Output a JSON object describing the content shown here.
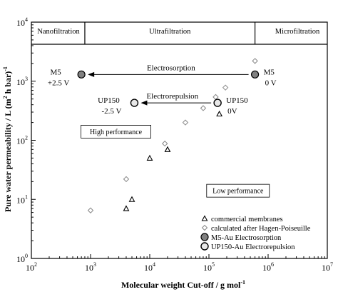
{
  "chart_data": {
    "type": "scatter",
    "x_scale": "log",
    "y_scale": "log",
    "xlim": [
      100,
      10000000
    ],
    "ylim": [
      1,
      10000
    ],
    "xlabel": "Molecular weight Cut-off / g mol",
    "xlabel_sup": "-1",
    "ylabel": "Pure water permeability / L (m",
    "ylabel_sup1": "2",
    "ylabel_mid": " h bar)",
    "ylabel_sup2": "-1",
    "x_ticks": [
      {
        "value": 100,
        "base": "10",
        "exp": "2"
      },
      {
        "value": 1000,
        "base": "10",
        "exp": "3"
      },
      {
        "value": 10000,
        "base": "10",
        "exp": "4"
      },
      {
        "value": 100000,
        "base": "10",
        "exp": "5"
      },
      {
        "value": 1000000,
        "base": "10",
        "exp": "6"
      },
      {
        "value": 10000000,
        "base": "10",
        "exp": "7"
      }
    ],
    "y_ticks": [
      {
        "value": 1,
        "base": "10",
        "exp": "0"
      },
      {
        "value": 10,
        "base": "10",
        "exp": "1"
      },
      {
        "value": 100,
        "base": "10",
        "exp": "2"
      },
      {
        "value": 1000,
        "base": "10",
        "exp": "3"
      },
      {
        "value": 10000,
        "base": "10",
        "exp": "4"
      }
    ],
    "regions": [
      {
        "label": "Nanofiltration",
        "from": 100,
        "to": 800
      },
      {
        "label": "Ultrafiltration",
        "from": 800,
        "to": 600000
      },
      {
        "label": "Microfiltration",
        "from": 600000,
        "to": 10000000
      }
    ],
    "region_boundaries": [
      800,
      600000
    ],
    "series": [
      {
        "name": "commercial membranes",
        "marker": "triangle",
        "points": [
          {
            "x": 4000,
            "y": 7
          },
          {
            "x": 5000,
            "y": 10
          },
          {
            "x": 10000,
            "y": 50
          },
          {
            "x": 20000,
            "y": 70
          },
          {
            "x": 150000,
            "y": 280
          }
        ]
      },
      {
        "name": "calculated after Hagen-Poiseuille",
        "marker": "diamond",
        "points": [
          {
            "x": 1000,
            "y": 6.5
          },
          {
            "x": 4000,
            "y": 22
          },
          {
            "x": 18000,
            "y": 88
          },
          {
            "x": 40000,
            "y": 200
          },
          {
            "x": 80000,
            "y": 350
          },
          {
            "x": 130000,
            "y": 540
          },
          {
            "x": 190000,
            "y": 780
          },
          {
            "x": 600000,
            "y": 2200
          }
        ]
      },
      {
        "name": "M5-Au Electrosorption",
        "marker": "circle-filled",
        "points": [
          {
            "x": 700,
            "y": 1300
          },
          {
            "x": 600000,
            "y": 1300
          }
        ]
      },
      {
        "name": "UP150-Au Electrorepulsion",
        "marker": "circle-open",
        "points": [
          {
            "x": 5500,
            "y": 430
          },
          {
            "x": 140000,
            "y": 430
          }
        ]
      }
    ],
    "arrows": [
      {
        "label": "Electrosorption",
        "from": {
          "x": 600000,
          "y": 1300
        },
        "to": {
          "x": 700,
          "y": 1300
        }
      },
      {
        "label": "Electrorepulsion",
        "from": {
          "x": 140000,
          "y": 430
        },
        "to": {
          "x": 5500,
          "y": 430
        }
      }
    ],
    "point_labels": [
      {
        "lines": [
          "M5",
          "+2.5 V"
        ],
        "x": 700,
        "y": 1300,
        "side": "left"
      },
      {
        "lines": [
          "M5",
          "0 V"
        ],
        "x": 600000,
        "y": 1300,
        "side": "right"
      },
      {
        "lines": [
          "UP150",
          "-2.5 V"
        ],
        "x": 5500,
        "y": 430,
        "side": "left"
      },
      {
        "lines": [
          "UP150",
          "0V"
        ],
        "x": 140000,
        "y": 430,
        "side": "right"
      }
    ],
    "boxes": [
      {
        "label": "High performance",
        "x": 1200,
        "y": 140
      },
      {
        "label": "Low performance",
        "x": 310000,
        "y": 14
      }
    ],
    "legend": {
      "position": "bottom-right"
    },
    "grid": false
  }
}
